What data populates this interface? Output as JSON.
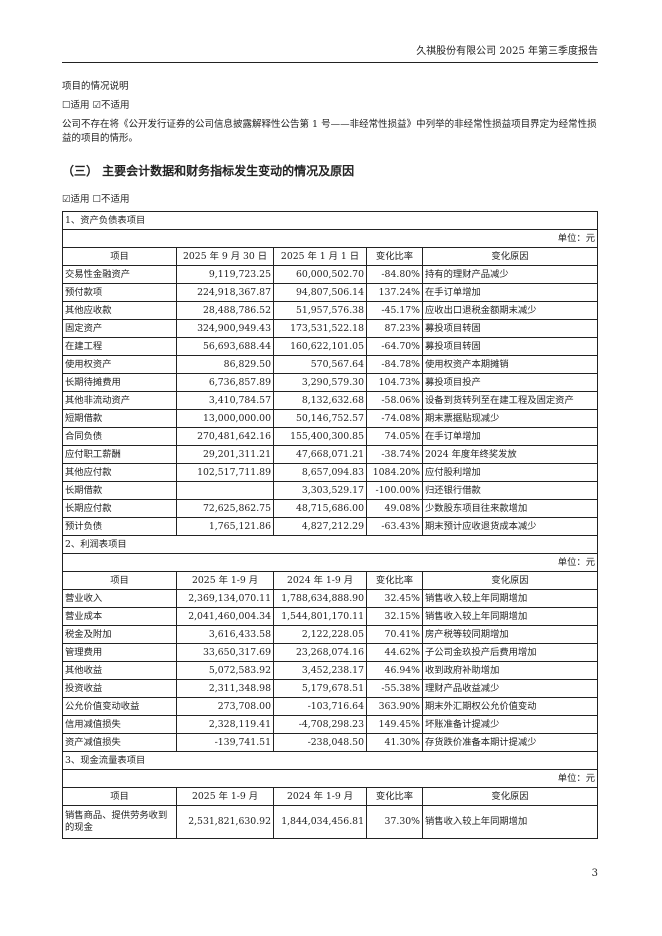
{
  "header": {
    "title": "久祺股份有限公司 2025 年第三季度报告"
  },
  "intro": {
    "line1": "项目的情况说明",
    "line2": "☐适用 ☑不适用",
    "line3": "公司不存在将《公开发行证券的公司信息披露解释性公告第 1 号——非经常性损益》中列举的非经常性损益项目界定为经常性损益的项目的情形。"
  },
  "section": {
    "title": "（三） 主要会计数据和财务指标发生变动的情况及原因",
    "applicable": "☑适用 ☐不适用"
  },
  "unit": "单位：元",
  "tables": [
    {
      "title": "1、资产负债表项目",
      "headers": [
        "项目",
        "2025 年 9 月 30 日",
        "2025 年 1 月 1 日",
        "变化比率",
        "变化原因"
      ],
      "rows": [
        [
          "交易性金融资产",
          "9,119,723.25",
          "60,000,502.70",
          "-84.80%",
          "持有的理财产品减少"
        ],
        [
          "预付款项",
          "224,918,367.87",
          "94,807,506.14",
          "137.24%",
          "在手订单增加"
        ],
        [
          "其他应收款",
          "28,488,786.52",
          "51,957,576.38",
          "-45.17%",
          "应收出口退税金额期末减少"
        ],
        [
          "固定资产",
          "324,900,949.43",
          "173,531,522.18",
          "87.23%",
          "募投项目转固"
        ],
        [
          "在建工程",
          "56,693,688.44",
          "160,622,101.05",
          "-64.70%",
          "募投项目转固"
        ],
        [
          "使用权资产",
          "86,829.50",
          "570,567.64",
          "-84.78%",
          "使用权资产本期摊销"
        ],
        [
          "长期待摊费用",
          "6,736,857.89",
          "3,290,579.30",
          "104.73%",
          "募投项目投产"
        ],
        [
          "其他非流动资产",
          "3,410,784.57",
          "8,132,632.68",
          "-58.06%",
          "设备到货转列至在建工程及固定资产"
        ],
        [
          "短期借款",
          "13,000,000.00",
          "50,146,752.57",
          "-74.08%",
          "期末票据贴现减少"
        ],
        [
          "合同负债",
          "270,481,642.16",
          "155,400,300.85",
          "74.05%",
          "在手订单增加"
        ],
        [
          "应付职工薪酬",
          "29,201,311.21",
          "47,668,071.21",
          "-38.74%",
          "2024 年度年终奖发放"
        ],
        [
          "其他应付款",
          "102,517,711.89",
          "8,657,094.83",
          "1084.20%",
          "应付股利增加"
        ],
        [
          "长期借款",
          "",
          "3,303,529.17",
          "-100.00%",
          "归还银行借款"
        ],
        [
          "长期应付款",
          "72,625,862.75",
          "48,715,686.00",
          "49.08%",
          "少数股东项目往来款增加"
        ],
        [
          "预计负债",
          "1,765,121.86",
          "4,827,212.29",
          "-63.43%",
          "期末预计应收退货成本减少"
        ]
      ]
    },
    {
      "title": "2、利润表项目",
      "headers": [
        "项目",
        "2025 年 1-9 月",
        "2024 年 1-9 月",
        "变化比率",
        "变化原因"
      ],
      "rows": [
        [
          "营业收入",
          "2,369,134,070.11",
          "1,788,634,888.90",
          "32.45%",
          "销售收入较上年同期增加"
        ],
        [
          "营业成本",
          "2,041,460,004.34",
          "1,544,801,170.11",
          "32.15%",
          "销售收入较上年同期增加"
        ],
        [
          "税金及附加",
          "3,616,433.58",
          "2,122,228.05",
          "70.41%",
          "房产税等较同期增加"
        ],
        [
          "管理费用",
          "33,650,317.69",
          "23,268,074.16",
          "44.62%",
          "子公司金玖投产后费用增加"
        ],
        [
          "其他收益",
          "5,072,583.92",
          "3,452,238.17",
          "46.94%",
          "收到政府补助增加"
        ],
        [
          "投资收益",
          "2,311,348.98",
          "5,179,678.51",
          "-55.38%",
          "理财产品收益减少"
        ],
        [
          "公允价值变动收益",
          "273,708.00",
          "-103,716.64",
          "363.90%",
          "期末外汇期权公允价值变动"
        ],
        [
          "信用减值损失",
          "2,328,119.41",
          "-4,708,298.23",
          "149.45%",
          "坏账准备计提减少"
        ],
        [
          "资产减值损失",
          "-139,741.51",
          "-238,048.50",
          "41.30%",
          "存货跌价准备本期计提减少"
        ]
      ]
    },
    {
      "title": "3、现金流量表项目",
      "headers": [
        "项目",
        "2025 年 1-9 月",
        "2024 年 1-9 月",
        "变化比率",
        "变化原因"
      ],
      "rows": [
        [
          "销售商品、提供劳务收到的现金",
          "2,531,821,630.92",
          "1,844,034,456.81",
          "37.30%",
          "销售收入较上年同期增加"
        ]
      ]
    }
  ],
  "page_number": "3"
}
